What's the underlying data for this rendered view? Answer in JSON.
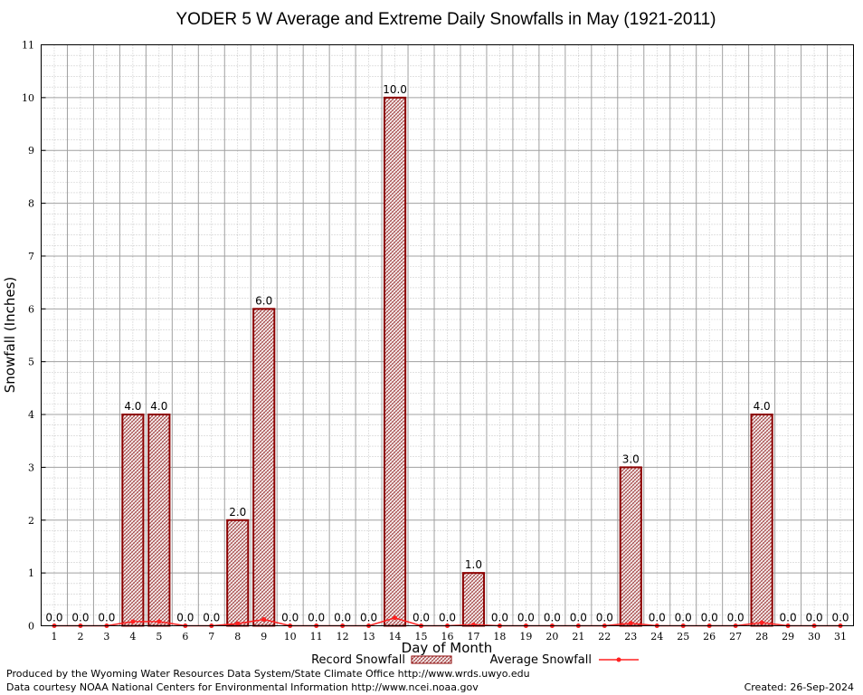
{
  "chart_data": {
    "type": "bar",
    "title": "YODER 5 W Average and Extreme Daily Snowfalls in May (1921-2011)",
    "xlabel": "Day of Month",
    "ylabel": "Snowfall (Inches)",
    "ylim": [
      0,
      11
    ],
    "yticks": [
      "0",
      "1",
      "2",
      "3",
      "4",
      "5",
      "6",
      "7",
      "8",
      "9",
      "10",
      "11"
    ],
    "categories": [
      "1",
      "2",
      "3",
      "4",
      "5",
      "6",
      "7",
      "8",
      "9",
      "10",
      "11",
      "12",
      "13",
      "14",
      "15",
      "16",
      "17",
      "18",
      "19",
      "20",
      "21",
      "22",
      "23",
      "24",
      "25",
      "26",
      "27",
      "28",
      "29",
      "30",
      "31"
    ],
    "series": [
      {
        "name": "Record Snowfall",
        "kind": "bar",
        "values": [
          0,
          0,
          0,
          4,
          4,
          0,
          0,
          2,
          6,
          0,
          0,
          0,
          0,
          10,
          0,
          0,
          1,
          0,
          0,
          0,
          0,
          0,
          3,
          0,
          0,
          0,
          0,
          4,
          0,
          0,
          0
        ],
        "labels": [
          "0.0",
          "0.0",
          "0.0",
          "4.0",
          "4.0",
          "0.0",
          "0.0",
          "2.0",
          "6.0",
          "0.0",
          "0.0",
          "0.0",
          "0.0",
          "10.0",
          "0.0",
          "0.0",
          "1.0",
          "0.0",
          "0.0",
          "0.0",
          "0.0",
          "0.0",
          "3.0",
          "0.0",
          "0.0",
          "0.0",
          "0.0",
          "4.0",
          "0.0",
          "0.0",
          "0.0"
        ]
      },
      {
        "name": "Average Snowfall",
        "kind": "line",
        "values": [
          0,
          0,
          0,
          0.08,
          0.08,
          0,
          0,
          0.04,
          0.12,
          0,
          0,
          0,
          0,
          0.15,
          0,
          0,
          0.02,
          0,
          0,
          0,
          0,
          0,
          0.05,
          0,
          0,
          0,
          0,
          0.06,
          0,
          0,
          0
        ]
      }
    ],
    "grid": true,
    "legend": "bottom-center",
    "colors": {
      "bar_outline": "#8b0000",
      "bar_pattern": "#a04040",
      "average_line": "#ff2020",
      "grid": "#a0a0a0"
    }
  },
  "footer": {
    "produced_by": "Produced by the Wyoming Water Resources Data System/State Climate Office http://www.wrds.uwyo.edu",
    "courtesy": "Data courtesy NOAA National Centers for Environmental Information http://www.ncei.noaa.gov",
    "created": "Created:  26-Sep-2024"
  }
}
